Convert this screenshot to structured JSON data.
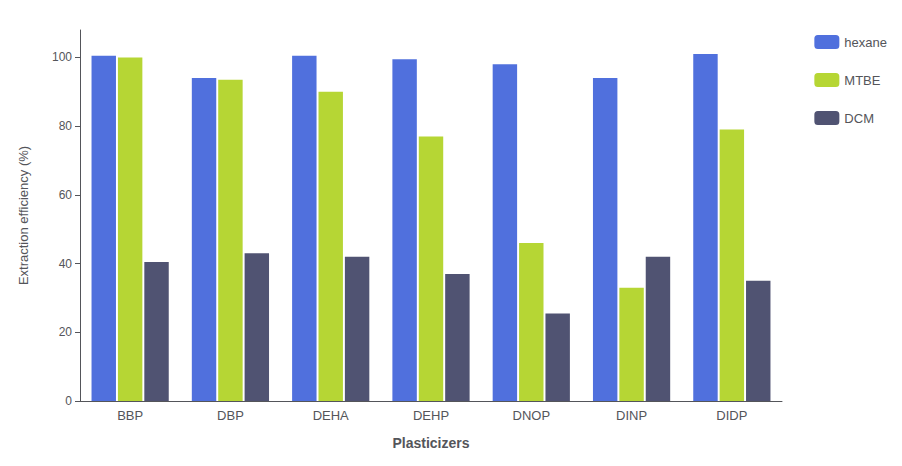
{
  "chart_data": {
    "type": "bar",
    "categories": [
      "BBP",
      "DBP",
      "DEHA",
      "DEHP",
      "DNOP",
      "DINP",
      "DIDP"
    ],
    "series": [
      {
        "name": "hexane",
        "values": [
          100.5,
          94,
          100.5,
          99.5,
          98,
          94,
          101
        ]
      },
      {
        "name": "MTBE",
        "values": [
          100,
          93.5,
          90,
          77,
          46,
          33,
          79
        ]
      },
      {
        "name": "DCM",
        "values": [
          40.5,
          43,
          42,
          37,
          25.5,
          42,
          35
        ]
      }
    ],
    "xlabel": "Plasticizers",
    "ylabel": "Extraction efficiency (%)",
    "ylim": [
      0,
      108
    ],
    "yticks": [
      0,
      20,
      40,
      60,
      80,
      100
    ],
    "grid": false,
    "legend": "upper right"
  }
}
